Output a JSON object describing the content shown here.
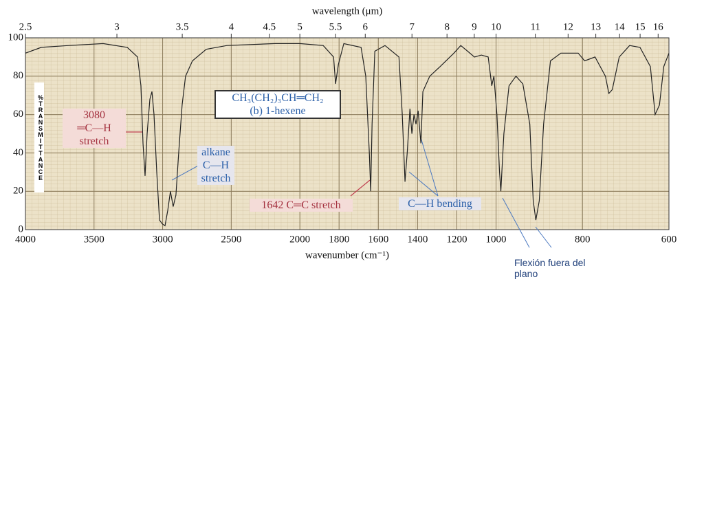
{
  "chart_data": {
    "type": "line",
    "xlabel": "wavenumber (cm⁻¹)",
    "x2label": "wavelength (μm)",
    "ylabel": "%TRANSMITTANCE",
    "x": [
      4000,
      3885,
      3685,
      3434,
      3258,
      3183,
      3158,
      3143,
      3128,
      3113,
      3093,
      3078,
      3063,
      3043,
      3023,
      3003,
      2983,
      2963,
      2943,
      2923,
      2903,
      2883,
      2858,
      2833,
      2783,
      2682,
      2532,
      2181,
      2000,
      1881,
      1828,
      1818,
      1804,
      1776,
      1688,
      1664,
      1646,
      1639,
      1632,
      1618,
      1566,
      1495,
      1478,
      1464,
      1453,
      1439,
      1429,
      1418,
      1408,
      1397,
      1383,
      1373,
      1338,
      1285,
      1215,
      1180,
      1145,
      1110,
      1075,
      1040,
      1022,
      1011,
      998,
      992,
      989,
      982,
      970,
      954,
      938,
      922,
      914,
      908,
      900,
      890,
      874,
      850,
      810,
      795,
      771,
      747,
      739,
      731,
      715,
      691,
      667,
      643,
      632,
      622,
      612,
      600
    ],
    "values": [
      92,
      95,
      96,
      97,
      95,
      90,
      75,
      45,
      28,
      50,
      68,
      72,
      60,
      30,
      5,
      3,
      2,
      10,
      20,
      12,
      18,
      40,
      65,
      80,
      88,
      94,
      96,
      97,
      97,
      96,
      90,
      76,
      86,
      97,
      95,
      80,
      40,
      20,
      55,
      93,
      96,
      90,
      60,
      25,
      40,
      63,
      50,
      60,
      55,
      62,
      45,
      72,
      80,
      85,
      92,
      96,
      93,
      90,
      91,
      90,
      75,
      80,
      60,
      30,
      20,
      50,
      75,
      80,
      76,
      55,
      15,
      5,
      15,
      55,
      88,
      92,
      92,
      88,
      90,
      80,
      71,
      73,
      90,
      96,
      95,
      85,
      60,
      65,
      85,
      92
    ],
    "color": "#222222",
    "xlim": [
      4000,
      600
    ],
    "ylim": [
      0,
      100
    ],
    "xscale": {
      "breaks": [
        2000,
        1000
      ],
      "factors": [
        1,
        1.43,
        3.15
      ]
    },
    "xticks": [
      4000,
      3500,
      3000,
      2500,
      2000,
      1800,
      1600,
      1400,
      1200,
      1000,
      800,
      600
    ],
    "x2ticks": [
      2.5,
      3,
      3.5,
      4,
      4.5,
      5,
      5.5,
      6,
      7,
      8,
      9,
      10,
      11,
      12,
      13,
      14,
      15,
      16
    ],
    "yticks": [
      0,
      20,
      40,
      60,
      80,
      100
    ],
    "grid": true,
    "annotations": [
      {
        "lines": [
          "3080",
          "═C—H",
          "stretch"
        ]
      },
      {
        "lines": [
          "alkane",
          "C—H",
          "stretch"
        ]
      },
      {
        "lines": [
          "CH₃(CH₂)₃CH═CH₂",
          "(b) 1-hexene"
        ]
      },
      {
        "lines": [
          "1642 C═C stretch"
        ]
      },
      {
        "lines": [
          "C—H bending"
        ]
      },
      {
        "lines": [
          "Flexión fuera del plano"
        ]
      }
    ]
  }
}
